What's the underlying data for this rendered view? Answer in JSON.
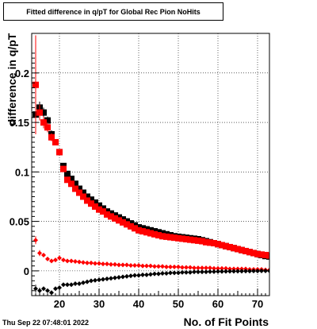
{
  "title": "Fitted difference in q/pT for Global Rec Pion NoHits",
  "footer_date": "Thu Sep 22 07:48:01 2022",
  "chart_data": {
    "type": "scatter",
    "title": "Fitted difference in q/pT for Global Rec Pion NoHits",
    "xlabel": "No. of Fit Points",
    "ylabel": "difference in q/pT",
    "xlim": [
      13,
      73
    ],
    "ylim": [
      -0.025,
      0.24
    ],
    "grid": true,
    "x_ticks": [
      20,
      30,
      40,
      50,
      60,
      70
    ],
    "x_tick_labels": [
      "20",
      "30",
      "40",
      "50",
      "60",
      "70"
    ],
    "y_ticks": [
      0,
      0.05,
      0.1,
      0.15,
      0.2
    ],
    "y_tick_labels": [
      "0",
      "0.05",
      "0.1",
      "0.15",
      "0.2"
    ],
    "colors": {
      "red": "#ff0000",
      "black": "#000000"
    },
    "series": [
      {
        "marker": "square",
        "color": "#000000",
        "x": [
          14,
          15,
          16,
          17,
          18,
          19,
          20,
          21,
          22,
          23,
          24,
          25,
          26,
          27,
          28,
          29,
          30,
          31,
          32,
          33,
          34,
          35,
          36,
          37,
          38,
          39,
          40,
          41,
          42,
          43,
          44,
          45,
          46,
          47,
          48,
          49,
          50,
          51,
          52,
          53,
          54,
          55,
          56,
          57,
          58,
          59,
          60,
          61,
          62,
          63,
          64,
          65,
          66,
          67,
          68,
          69,
          70,
          71,
          72,
          73
        ],
        "y": [
          0.158,
          0.165,
          0.16,
          0.152,
          0.138,
          0.13,
          0.12,
          0.106,
          0.098,
          0.093,
          0.088,
          0.083,
          0.079,
          0.075,
          0.072,
          0.069,
          0.066,
          0.063,
          0.06,
          0.058,
          0.056,
          0.054,
          0.052,
          0.05,
          0.048,
          0.046,
          0.044,
          0.043,
          0.042,
          0.041,
          0.04,
          0.039,
          0.038,
          0.037,
          0.036,
          0.035,
          0.0345,
          0.034,
          0.0335,
          0.033,
          0.0325,
          0.032,
          0.031,
          0.03,
          0.029,
          0.028,
          0.027,
          0.026,
          0.025,
          0.024,
          0.023,
          0.022,
          0.021,
          0.02,
          0.019,
          0.018,
          0.017,
          0.016,
          0.015,
          0.0145
        ],
        "errors": [
          0.015,
          0.006,
          0.005,
          0.004,
          0.004,
          0.003,
          0.003,
          0.003,
          0.002,
          0.002,
          0.002,
          0.002,
          0.002,
          0.002,
          0.002,
          0.002,
          0.002,
          0.002,
          0.002,
          0.002,
          0.002,
          0.002,
          0.002,
          0.002,
          0.002,
          0.002,
          0.002,
          0.002,
          0.002,
          0.002,
          0.002,
          0.002,
          0.002,
          0.002,
          0.002,
          0.002,
          0.002,
          0.002,
          0.002,
          0.002,
          0.002,
          0.002,
          0.002,
          0.002,
          0.002,
          0.002,
          0.002,
          0.002,
          0.002,
          0.002,
          0.002,
          0.002,
          0.002,
          0.002,
          0.002,
          0.002,
          0.002,
          0.002,
          0.002,
          0.002
        ]
      },
      {
        "marker": "square",
        "color": "#ff0000",
        "x": [
          14,
          15,
          16,
          17,
          18,
          19,
          20,
          21,
          22,
          23,
          24,
          25,
          26,
          27,
          28,
          29,
          30,
          31,
          32,
          33,
          34,
          35,
          36,
          37,
          38,
          39,
          40,
          41,
          42,
          43,
          44,
          45,
          46,
          47,
          48,
          49,
          50,
          51,
          52,
          53,
          54,
          55,
          56,
          57,
          58,
          59,
          60,
          61,
          62,
          63,
          64,
          65,
          66,
          67,
          68,
          69,
          70,
          71,
          72,
          73
        ],
        "y": [
          0.188,
          0.16,
          0.15,
          0.145,
          0.135,
          0.13,
          0.12,
          0.103,
          0.092,
          0.088,
          0.083,
          0.079,
          0.075,
          0.071,
          0.068,
          0.065,
          0.062,
          0.06,
          0.057,
          0.055,
          0.053,
          0.051,
          0.049,
          0.047,
          0.045,
          0.043,
          0.041,
          0.04,
          0.039,
          0.038,
          0.037,
          0.036,
          0.035,
          0.0345,
          0.034,
          0.0335,
          0.033,
          0.0325,
          0.032,
          0.0315,
          0.031,
          0.0305,
          0.03,
          0.029,
          0.0285,
          0.028,
          0.027,
          0.026,
          0.025,
          0.024,
          0.023,
          0.022,
          0.021,
          0.02,
          0.019,
          0.018,
          0.017,
          0.0165,
          0.016,
          0.0155
        ],
        "errors": [
          0.05,
          0.008,
          0.006,
          0.005,
          0.004,
          0.003,
          0.003,
          0.003,
          0.002,
          0.002,
          0.002,
          0.002,
          0.002,
          0.002,
          0.002,
          0.002,
          0.002,
          0.002,
          0.002,
          0.002,
          0.002,
          0.002,
          0.002,
          0.002,
          0.002,
          0.002,
          0.002,
          0.002,
          0.002,
          0.002,
          0.002,
          0.002,
          0.002,
          0.002,
          0.002,
          0.002,
          0.002,
          0.002,
          0.002,
          0.002,
          0.002,
          0.002,
          0.002,
          0.002,
          0.002,
          0.002,
          0.002,
          0.002,
          0.002,
          0.002,
          0.002,
          0.002,
          0.002,
          0.002,
          0.002,
          0.002,
          0.002,
          0.002,
          0.002,
          0.002
        ]
      },
      {
        "marker": "diamond",
        "color": "#ff0000",
        "x": [
          14,
          15,
          16,
          17,
          18,
          19,
          20,
          21,
          22,
          23,
          24,
          25,
          26,
          27,
          28,
          29,
          30,
          31,
          32,
          33,
          34,
          35,
          36,
          37,
          38,
          39,
          40,
          41,
          42,
          43,
          44,
          45,
          46,
          47,
          48,
          49,
          50,
          51,
          52,
          53,
          54,
          55,
          56,
          57,
          58,
          59,
          60,
          61,
          62,
          63,
          64,
          65,
          66,
          67,
          68,
          69,
          70,
          71,
          72,
          73
        ],
        "y": [
          0.031,
          0.018,
          0.016,
          0.012,
          0.01,
          0.011,
          0.013,
          0.011,
          0.01,
          0.01,
          0.0095,
          0.009,
          0.0085,
          0.008,
          0.008,
          0.0075,
          0.0075,
          0.007,
          0.007,
          0.0065,
          0.0065,
          0.006,
          0.006,
          0.006,
          0.0055,
          0.0055,
          0.0055,
          0.005,
          0.005,
          0.005,
          0.0045,
          0.0045,
          0.0045,
          0.004,
          0.004,
          0.004,
          0.004,
          0.0035,
          0.0035,
          0.0035,
          0.003,
          0.003,
          0.003,
          0.003,
          0.003,
          0.0025,
          0.0025,
          0.0025,
          0.0025,
          0.002,
          0.002,
          0.002,
          0.002,
          0.002,
          0.0015,
          0.0015,
          0.0015,
          0.0015,
          0.001,
          0.001
        ],
        "errors": [
          0.004,
          0.003,
          0.002,
          0.002,
          0.002,
          0.002,
          0.002,
          0.001,
          0.001,
          0.001,
          0.001,
          0.001,
          0.001,
          0.001,
          0.001,
          0.001,
          0.001,
          0.001,
          0.001,
          0.001,
          0.001,
          0.001,
          0.001,
          0.001,
          0.001,
          0.001,
          0.001,
          0.001,
          0.001,
          0.001,
          0.001,
          0.001,
          0.001,
          0.001,
          0.001,
          0.001,
          0.001,
          0.001,
          0.001,
          0.001,
          0.001,
          0.001,
          0.001,
          0.001,
          0.001,
          0.001,
          0.001,
          0.001,
          0.001,
          0.001,
          0.001,
          0.001,
          0.001,
          0.001,
          0.001,
          0.001,
          0.001,
          0.001,
          0.001,
          0.001
        ]
      },
      {
        "marker": "diamond",
        "color": "#000000",
        "x": [
          14,
          15,
          16,
          17,
          18,
          19,
          20,
          21,
          22,
          23,
          24,
          25,
          26,
          27,
          28,
          29,
          30,
          31,
          32,
          33,
          34,
          35,
          36,
          37,
          38,
          39,
          40,
          41,
          42,
          43,
          44,
          45,
          46,
          47,
          48,
          49,
          50,
          51,
          52,
          53,
          54,
          55,
          56,
          57,
          58,
          59,
          60,
          61,
          62,
          63,
          64,
          65,
          66,
          67,
          68,
          69,
          70,
          71,
          72,
          73
        ],
        "y": [
          -0.018,
          -0.02,
          -0.018,
          -0.02,
          -0.022,
          -0.018,
          -0.017,
          -0.014,
          -0.014,
          -0.014,
          -0.013,
          -0.013,
          -0.012,
          -0.011,
          -0.01,
          -0.0095,
          -0.009,
          -0.0085,
          -0.008,
          -0.0075,
          -0.007,
          -0.0065,
          -0.006,
          -0.0055,
          -0.005,
          -0.0045,
          -0.0045,
          -0.004,
          -0.004,
          -0.0035,
          -0.003,
          -0.003,
          -0.0025,
          -0.0025,
          -0.002,
          -0.002,
          -0.002,
          -0.0015,
          -0.0015,
          -0.0015,
          -0.001,
          -0.001,
          -0.001,
          -0.001,
          -0.0008,
          -0.0008,
          -0.0006,
          -0.0006,
          -0.0005,
          -0.0004,
          -0.0004,
          -0.0003,
          -0.0003,
          -0.0002,
          -0.0002,
          -0.0001,
          -0.0001,
          0,
          0,
          0
        ],
        "errors": [
          0.004,
          0.003,
          0.002,
          0.002,
          0.002,
          0.002,
          0.002,
          0.001,
          0.001,
          0.001,
          0.001,
          0.001,
          0.001,
          0.001,
          0.001,
          0.001,
          0.001,
          0.001,
          0.001,
          0.001,
          0.001,
          0.001,
          0.001,
          0.001,
          0.001,
          0.001,
          0.001,
          0.001,
          0.001,
          0.001,
          0.001,
          0.001,
          0.001,
          0.001,
          0.001,
          0.001,
          0.001,
          0.001,
          0.001,
          0.001,
          0.001,
          0.001,
          0.001,
          0.001,
          0.001,
          0.001,
          0.001,
          0.001,
          0.001,
          0.001,
          0.001,
          0.001,
          0.001,
          0.001,
          0.001,
          0.001,
          0.001,
          0.001,
          0.001,
          0.001
        ]
      }
    ]
  }
}
